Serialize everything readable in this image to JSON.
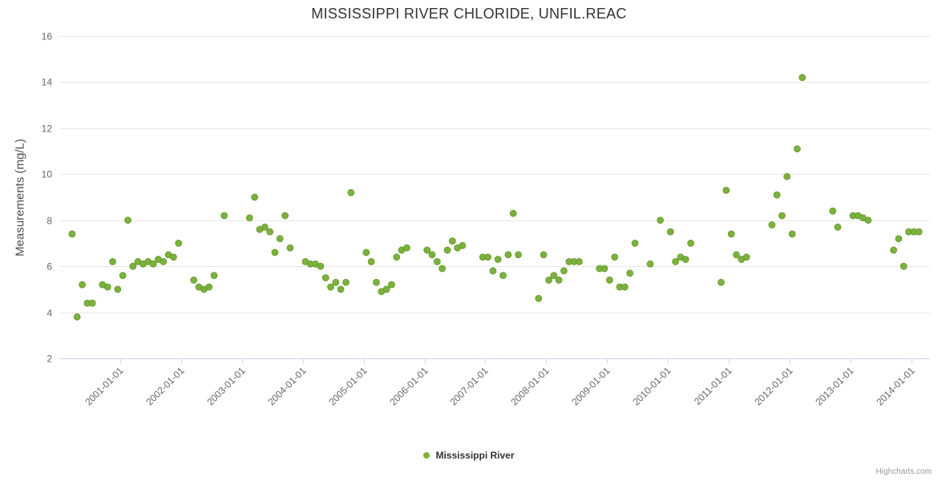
{
  "title": "MISSISSIPPI RIVER CHLORIDE, UNFIL.REAC",
  "credits": "Highcharts.com",
  "legend": {
    "label": "Mississippi River"
  },
  "colors": {
    "point": "#7bb23d",
    "point_edge": "#609427",
    "grid": "#e6e6e6",
    "axis_line": "#ccd6eb",
    "tick_text": "#666666",
    "title_text": "#333333",
    "axis_title_text": "#4d4d4d",
    "credits_text": "#999999"
  },
  "chart_data": {
    "type": "scatter",
    "title": "MISSISSIPPI RIVER CHLORIDE, UNFIL.REAC",
    "xlabel": "",
    "ylabel": "Measurements (mg/L)",
    "ylim": [
      2,
      16
    ],
    "y_ticks": [
      2,
      4,
      6,
      8,
      10,
      12,
      14,
      16
    ],
    "x_ticks": [
      "2001-01-01",
      "2002-01-01",
      "2003-01-01",
      "2004-01-01",
      "2005-01-01",
      "2006-01-01",
      "2007-01-01",
      "2008-01-01",
      "2009-01-01",
      "2010-01-01",
      "2011-01-01",
      "2012-01-01",
      "2013-01-01",
      "2014-01-01"
    ],
    "x_range": [
      "2000-01",
      "2014-05"
    ],
    "grid": "horizontal-only",
    "legend_position": "bottom-center",
    "series": [
      {
        "name": "Mississippi River",
        "points": [
          [
            "2000-03",
            7.4
          ],
          [
            "2000-04",
            3.8
          ],
          [
            "2000-05",
            5.2
          ],
          [
            "2000-06",
            4.4
          ],
          [
            "2000-07",
            4.4
          ],
          [
            "2000-09",
            5.2
          ],
          [
            "2000-10",
            5.1
          ],
          [
            "2000-11",
            6.2
          ],
          [
            "2000-12",
            5.0
          ],
          [
            "2001-01",
            5.6
          ],
          [
            "2001-02",
            8.0
          ],
          [
            "2001-03",
            6.0
          ],
          [
            "2001-04",
            6.2
          ],
          [
            "2001-05",
            6.1
          ],
          [
            "2001-06",
            6.2
          ],
          [
            "2001-07",
            6.1
          ],
          [
            "2001-08",
            6.3
          ],
          [
            "2001-09",
            6.2
          ],
          [
            "2001-10",
            6.5
          ],
          [
            "2001-11",
            6.4
          ],
          [
            "2001-12",
            7.0
          ],
          [
            "2002-03",
            5.4
          ],
          [
            "2002-04",
            5.1
          ],
          [
            "2002-05",
            5.0
          ],
          [
            "2002-06",
            5.1
          ],
          [
            "2002-07",
            5.6
          ],
          [
            "2002-09",
            8.2
          ],
          [
            "2003-02",
            8.1
          ],
          [
            "2003-03",
            9.0
          ],
          [
            "2003-04",
            7.6
          ],
          [
            "2003-05",
            7.7
          ],
          [
            "2003-06",
            7.5
          ],
          [
            "2003-07",
            6.6
          ],
          [
            "2003-08",
            7.2
          ],
          [
            "2003-09",
            8.2
          ],
          [
            "2003-10",
            6.8
          ],
          [
            "2004-01",
            6.2
          ],
          [
            "2004-02",
            6.1
          ],
          [
            "2004-03",
            6.1
          ],
          [
            "2004-04",
            6.0
          ],
          [
            "2004-05",
            5.5
          ],
          [
            "2004-06",
            5.1
          ],
          [
            "2004-07",
            5.3
          ],
          [
            "2004-08",
            5.0
          ],
          [
            "2004-09",
            5.3
          ],
          [
            "2004-10",
            9.2
          ],
          [
            "2005-01",
            6.6
          ],
          [
            "2005-02",
            6.2
          ],
          [
            "2005-03",
            5.3
          ],
          [
            "2005-04",
            4.9
          ],
          [
            "2005-05",
            5.0
          ],
          [
            "2005-06",
            5.2
          ],
          [
            "2005-07",
            6.4
          ],
          [
            "2005-08",
            6.7
          ],
          [
            "2005-09",
            6.8
          ],
          [
            "2006-01",
            6.7
          ],
          [
            "2006-02",
            6.5
          ],
          [
            "2006-03",
            6.2
          ],
          [
            "2006-04",
            5.9
          ],
          [
            "2006-05",
            6.7
          ],
          [
            "2006-06",
            7.1
          ],
          [
            "2006-07",
            6.8
          ],
          [
            "2006-08",
            6.9
          ],
          [
            "2006-12",
            6.4
          ],
          [
            "2007-01",
            6.4
          ],
          [
            "2007-02",
            5.8
          ],
          [
            "2007-03",
            6.3
          ],
          [
            "2007-04",
            5.6
          ],
          [
            "2007-05",
            6.5
          ],
          [
            "2007-06",
            8.3
          ],
          [
            "2007-07",
            6.5
          ],
          [
            "2007-11",
            4.6
          ],
          [
            "2007-12",
            6.5
          ],
          [
            "2008-01",
            5.4
          ],
          [
            "2008-02",
            5.6
          ],
          [
            "2008-03",
            5.4
          ],
          [
            "2008-04",
            5.8
          ],
          [
            "2008-05",
            6.2
          ],
          [
            "2008-06",
            6.2
          ],
          [
            "2008-07",
            6.2
          ],
          [
            "2008-11",
            5.9
          ],
          [
            "2008-12",
            5.9
          ],
          [
            "2009-01",
            5.4
          ],
          [
            "2009-02",
            6.4
          ],
          [
            "2009-03",
            5.1
          ],
          [
            "2009-04",
            5.1
          ],
          [
            "2009-05",
            5.7
          ],
          [
            "2009-06",
            7.0
          ],
          [
            "2009-09",
            6.1
          ],
          [
            "2009-11",
            8.0
          ],
          [
            "2010-01",
            7.5
          ],
          [
            "2010-02",
            6.2
          ],
          [
            "2010-03",
            6.4
          ],
          [
            "2010-04",
            6.3
          ],
          [
            "2010-05",
            7.0
          ],
          [
            "2010-11",
            5.3
          ],
          [
            "2010-12",
            9.3
          ],
          [
            "2011-01",
            7.4
          ],
          [
            "2011-02",
            6.5
          ],
          [
            "2011-03",
            6.3
          ],
          [
            "2011-04",
            6.4
          ],
          [
            "2011-09",
            7.8
          ],
          [
            "2011-10",
            9.1
          ],
          [
            "2011-11",
            8.2
          ],
          [
            "2011-12",
            9.9
          ],
          [
            "2012-01",
            7.4
          ],
          [
            "2012-02",
            11.1
          ],
          [
            "2012-03",
            14.2
          ],
          [
            "2012-09",
            8.4
          ],
          [
            "2012-10",
            7.7
          ],
          [
            "2013-01",
            8.2
          ],
          [
            "2013-02",
            8.2
          ],
          [
            "2013-03",
            8.1
          ],
          [
            "2013-04",
            8.0
          ],
          [
            "2013-09",
            6.7
          ],
          [
            "2013-10",
            7.2
          ],
          [
            "2013-11",
            6.0
          ],
          [
            "2013-12",
            7.5
          ],
          [
            "2014-01",
            7.5
          ],
          [
            "2014-02",
            7.5
          ]
        ]
      }
    ]
  }
}
